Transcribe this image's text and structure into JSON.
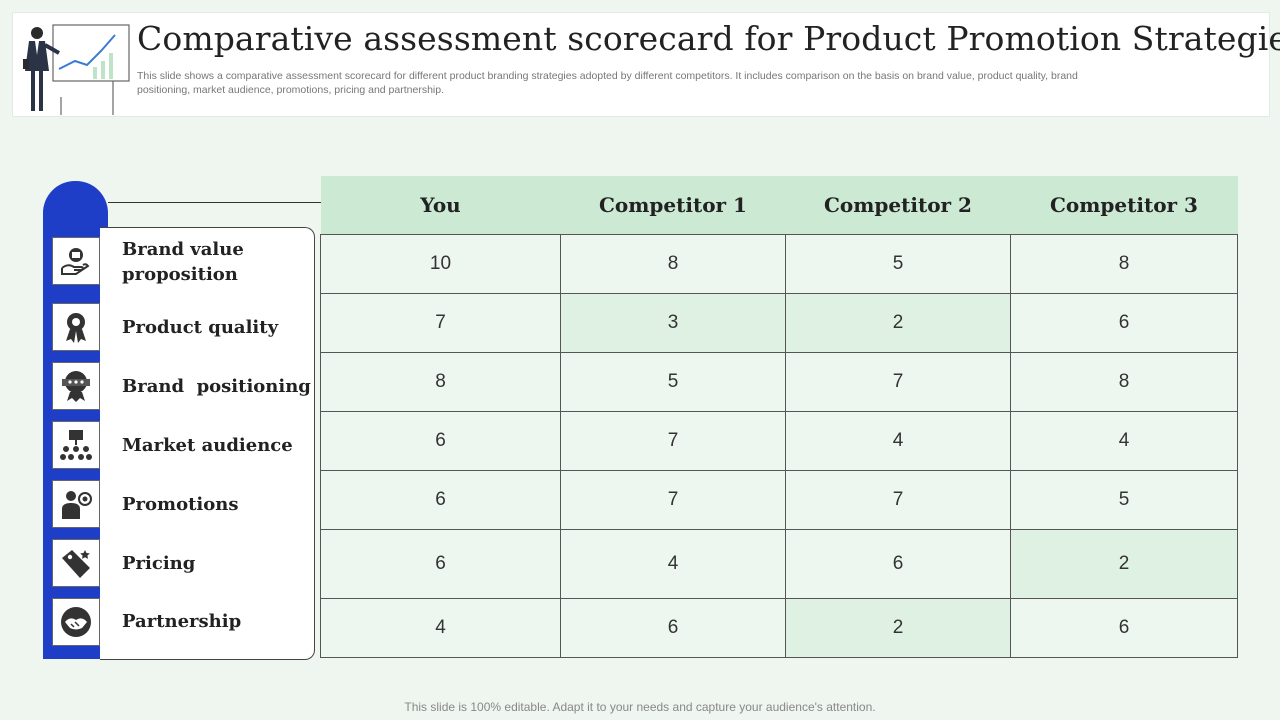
{
  "header": {
    "title": "Comparative assessment scorecard for Product Promotion Strategies",
    "subtitle": "This slide shows a  comparative assessment scorecard for different product branding strategies adopted by different competitors. It includes comparison on the basis on brand value, product quality,  brand positioning, market audience, promotions, pricing and partnership."
  },
  "colors": {
    "accent_blue": "#1e3ec8",
    "header_green": "#cbe9d3",
    "cell_green": "#eef7ef",
    "highlight_green": "#dff1e3"
  },
  "columns": [
    "You",
    "Competitor 1",
    "Competitor 2",
    "Competitor 3"
  ],
  "rows": [
    {
      "label": "Brand value proposition",
      "icon": "hand-coin-icon",
      "values": [
        "10",
        "8",
        "5",
        "8"
      ]
    },
    {
      "label": "Product quality",
      "icon": "award-ribbon-icon",
      "values": [
        "7",
        "3",
        "2",
        "6"
      ]
    },
    {
      "label": "Brand  positioning",
      "icon": "badge-star-icon",
      "values": [
        "8",
        "5",
        "7",
        "8"
      ]
    },
    {
      "label": "Market audience",
      "icon": "audience-icon",
      "values": [
        "6",
        "7",
        "4",
        "4"
      ]
    },
    {
      "label": "Promotions",
      "icon": "presenter-target-icon",
      "values": [
        "6",
        "7",
        "7",
        "5"
      ]
    },
    {
      "label": "Pricing",
      "icon": "price-tag-icon",
      "values": [
        "6",
        "4",
        "6",
        "2"
      ]
    },
    {
      "label": "Partnership",
      "icon": "handshake-icon",
      "values": [
        "4",
        "6",
        "2",
        "6"
      ]
    }
  ],
  "footer": "This slide is 100% editable. Adapt it to your needs and capture your audience's attention."
}
